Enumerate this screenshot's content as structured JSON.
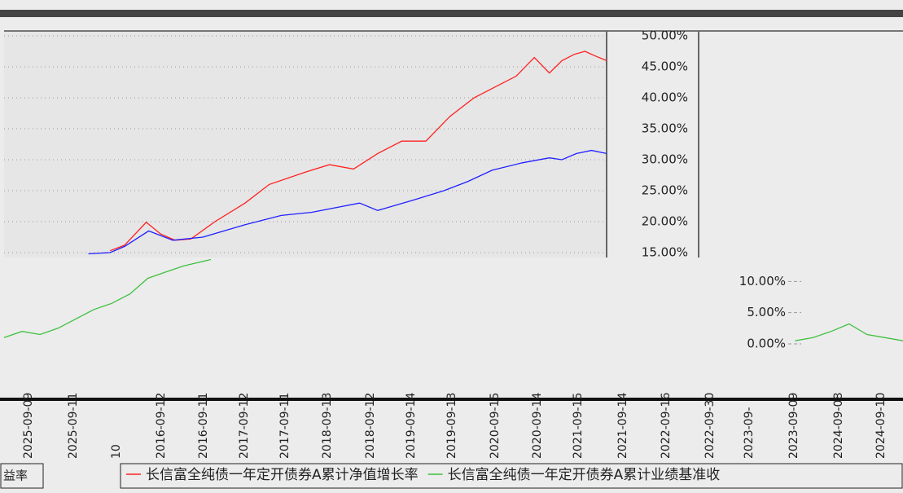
{
  "chart_data": [
    {
      "type": "line",
      "xlim": [
        0,
        100
      ],
      "ylim": [
        15,
        50
      ],
      "yticks": [
        {
          "value": 15,
          "label": "15.00%"
        },
        {
          "value": 20,
          "label": "20.00%"
        },
        {
          "value": 25,
          "label": "25.00%"
        },
        {
          "value": 30,
          "label": "30.00%"
        },
        {
          "value": 35,
          "label": "35.00%"
        },
        {
          "value": 40,
          "label": "40.00%"
        },
        {
          "value": 45,
          "label": "45.00%"
        },
        {
          "value": 50,
          "label": "50.00%"
        }
      ],
      "grid": true,
      "series": [
        {
          "color": "#ff2020",
          "x": [
            17.6,
            20,
            23.6,
            26,
            28.4,
            31,
            35,
            40,
            44,
            50,
            54,
            58,
            62,
            66,
            70,
            74,
            78,
            82,
            85,
            88,
            90.5,
            92.6,
            94.6,
            96.4,
            98,
            100
          ],
          "values": [
            15.3,
            16.2,
            19.9,
            18,
            17,
            17.2,
            20,
            23,
            26,
            28,
            29.2,
            28.5,
            31,
            33,
            33,
            37,
            40,
            42,
            43.5,
            46.5,
            44,
            46,
            47,
            47.5,
            46.8,
            46
          ]
        },
        {
          "color": "#2020ff",
          "x": [
            14,
            17.6,
            20,
            24,
            28,
            33,
            40,
            46,
            51,
            59,
            62,
            68,
            73,
            77,
            81,
            86,
            90.5,
            92.6,
            95,
            97.5,
            100
          ],
          "values": [
            14.8,
            15,
            16,
            18.5,
            17,
            17.5,
            19.5,
            21,
            21.5,
            23,
            21.8,
            23.5,
            25,
            26.5,
            28.3,
            29.5,
            30.3,
            30,
            31,
            31.5,
            31
          ]
        }
      ]
    },
    {
      "type": "line",
      "xlim": [
        0,
        100
      ],
      "ylim": [
        0,
        12
      ],
      "yticks": [
        {
          "value": 0,
          "label": "0.00%"
        },
        {
          "value": 5,
          "label": "5.00%"
        },
        {
          "value": 10,
          "label": "10.00%"
        }
      ],
      "series": [
        {
          "color": "#40c040",
          "x": [
            0,
            2,
            4,
            6,
            8,
            10,
            12,
            14,
            16,
            18,
            20,
            23,
            null,
            88,
            90,
            92,
            94,
            96,
            98,
            100
          ],
          "values": [
            1,
            2,
            1.5,
            2.5,
            4,
            5.5,
            6.5,
            8,
            10.5,
            11.5,
            12.5,
            13.5,
            null,
            0.5,
            1,
            2,
            3.2,
            1.5,
            1,
            0.5
          ]
        }
      ]
    }
  ],
  "x_labels": [
    "2025-09-09",
    "2025-09-11",
    "10",
    "2016-09-12",
    "2016-09-11",
    "2017-09-12",
    "2017-09-11",
    "2018-09-13",
    "2018-09-12",
    "2019-09-14",
    "2019-09-13",
    "2020-09-15",
    "2020-09-14",
    "2021-09-15",
    "2021-09-14",
    "2022-09-16",
    "2022-09-30",
    "2023-09-",
    "2023-09-09",
    "2024-09-08",
    "2024-09-10"
  ],
  "legend": {
    "left_text": "益率",
    "entries": [
      {
        "name": "长信富全纯债一年定开债券A累计净值增长率",
        "color": "#ff2020"
      },
      {
        "name": "长信富全纯债一年定开债券A累计业绩基准收",
        "color": "#40c040"
      }
    ]
  }
}
